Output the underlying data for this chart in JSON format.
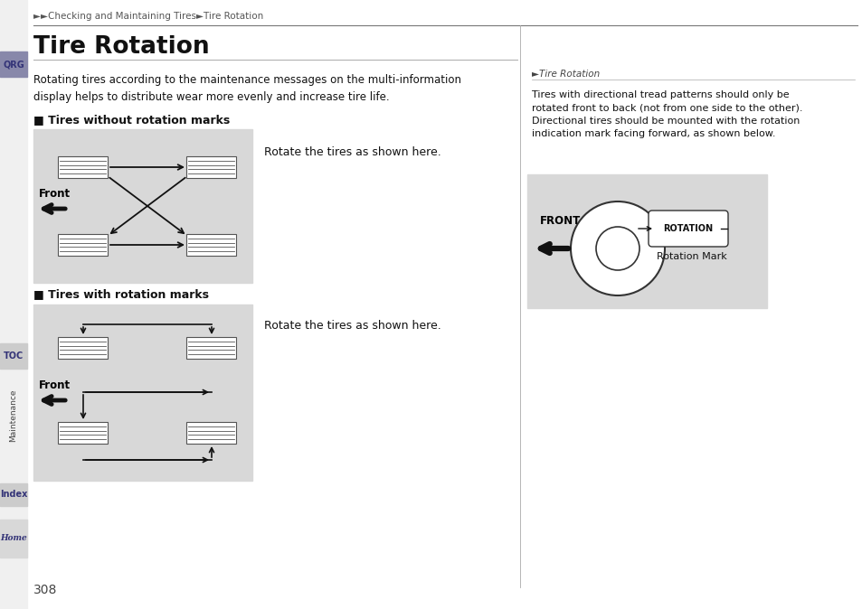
{
  "page_bg": "#ffffff",
  "sidebar_bg": "#cccccc",
  "header_text": "►►Checking and Maintaining Tires►Tire Rotation",
  "title": "Tire Rotation",
  "body_text": "Rotating tires according to the maintenance messages on the multi-information\ndisplay helps to distribute wear more evenly and increase tire life.",
  "section1_header": "■ Tires without rotation marks",
  "section1_body": "Rotate the tires as shown here.",
  "section2_header": "■ Tires with rotation marks",
  "section2_body": "Rotate the tires as shown here.",
  "right_note_header": "►Tire Rotation",
  "right_note_body": "Tires with directional tread patterns should only be\nrotated front to back (not from one side to the other).\nDirectional tires should be mounted with the rotation\nindication mark facing forward, as shown below.",
  "diagram_bg": "#d8d8d8",
  "page_number": "308",
  "sidebar_tab_qrg_color": "#6e6e9e",
  "sidebar_tab_toc_color": "#6e6e9e",
  "sidebar_tab_index_color": "#6e6e9e",
  "sidebar_tab_maint_color": "#cccccc"
}
